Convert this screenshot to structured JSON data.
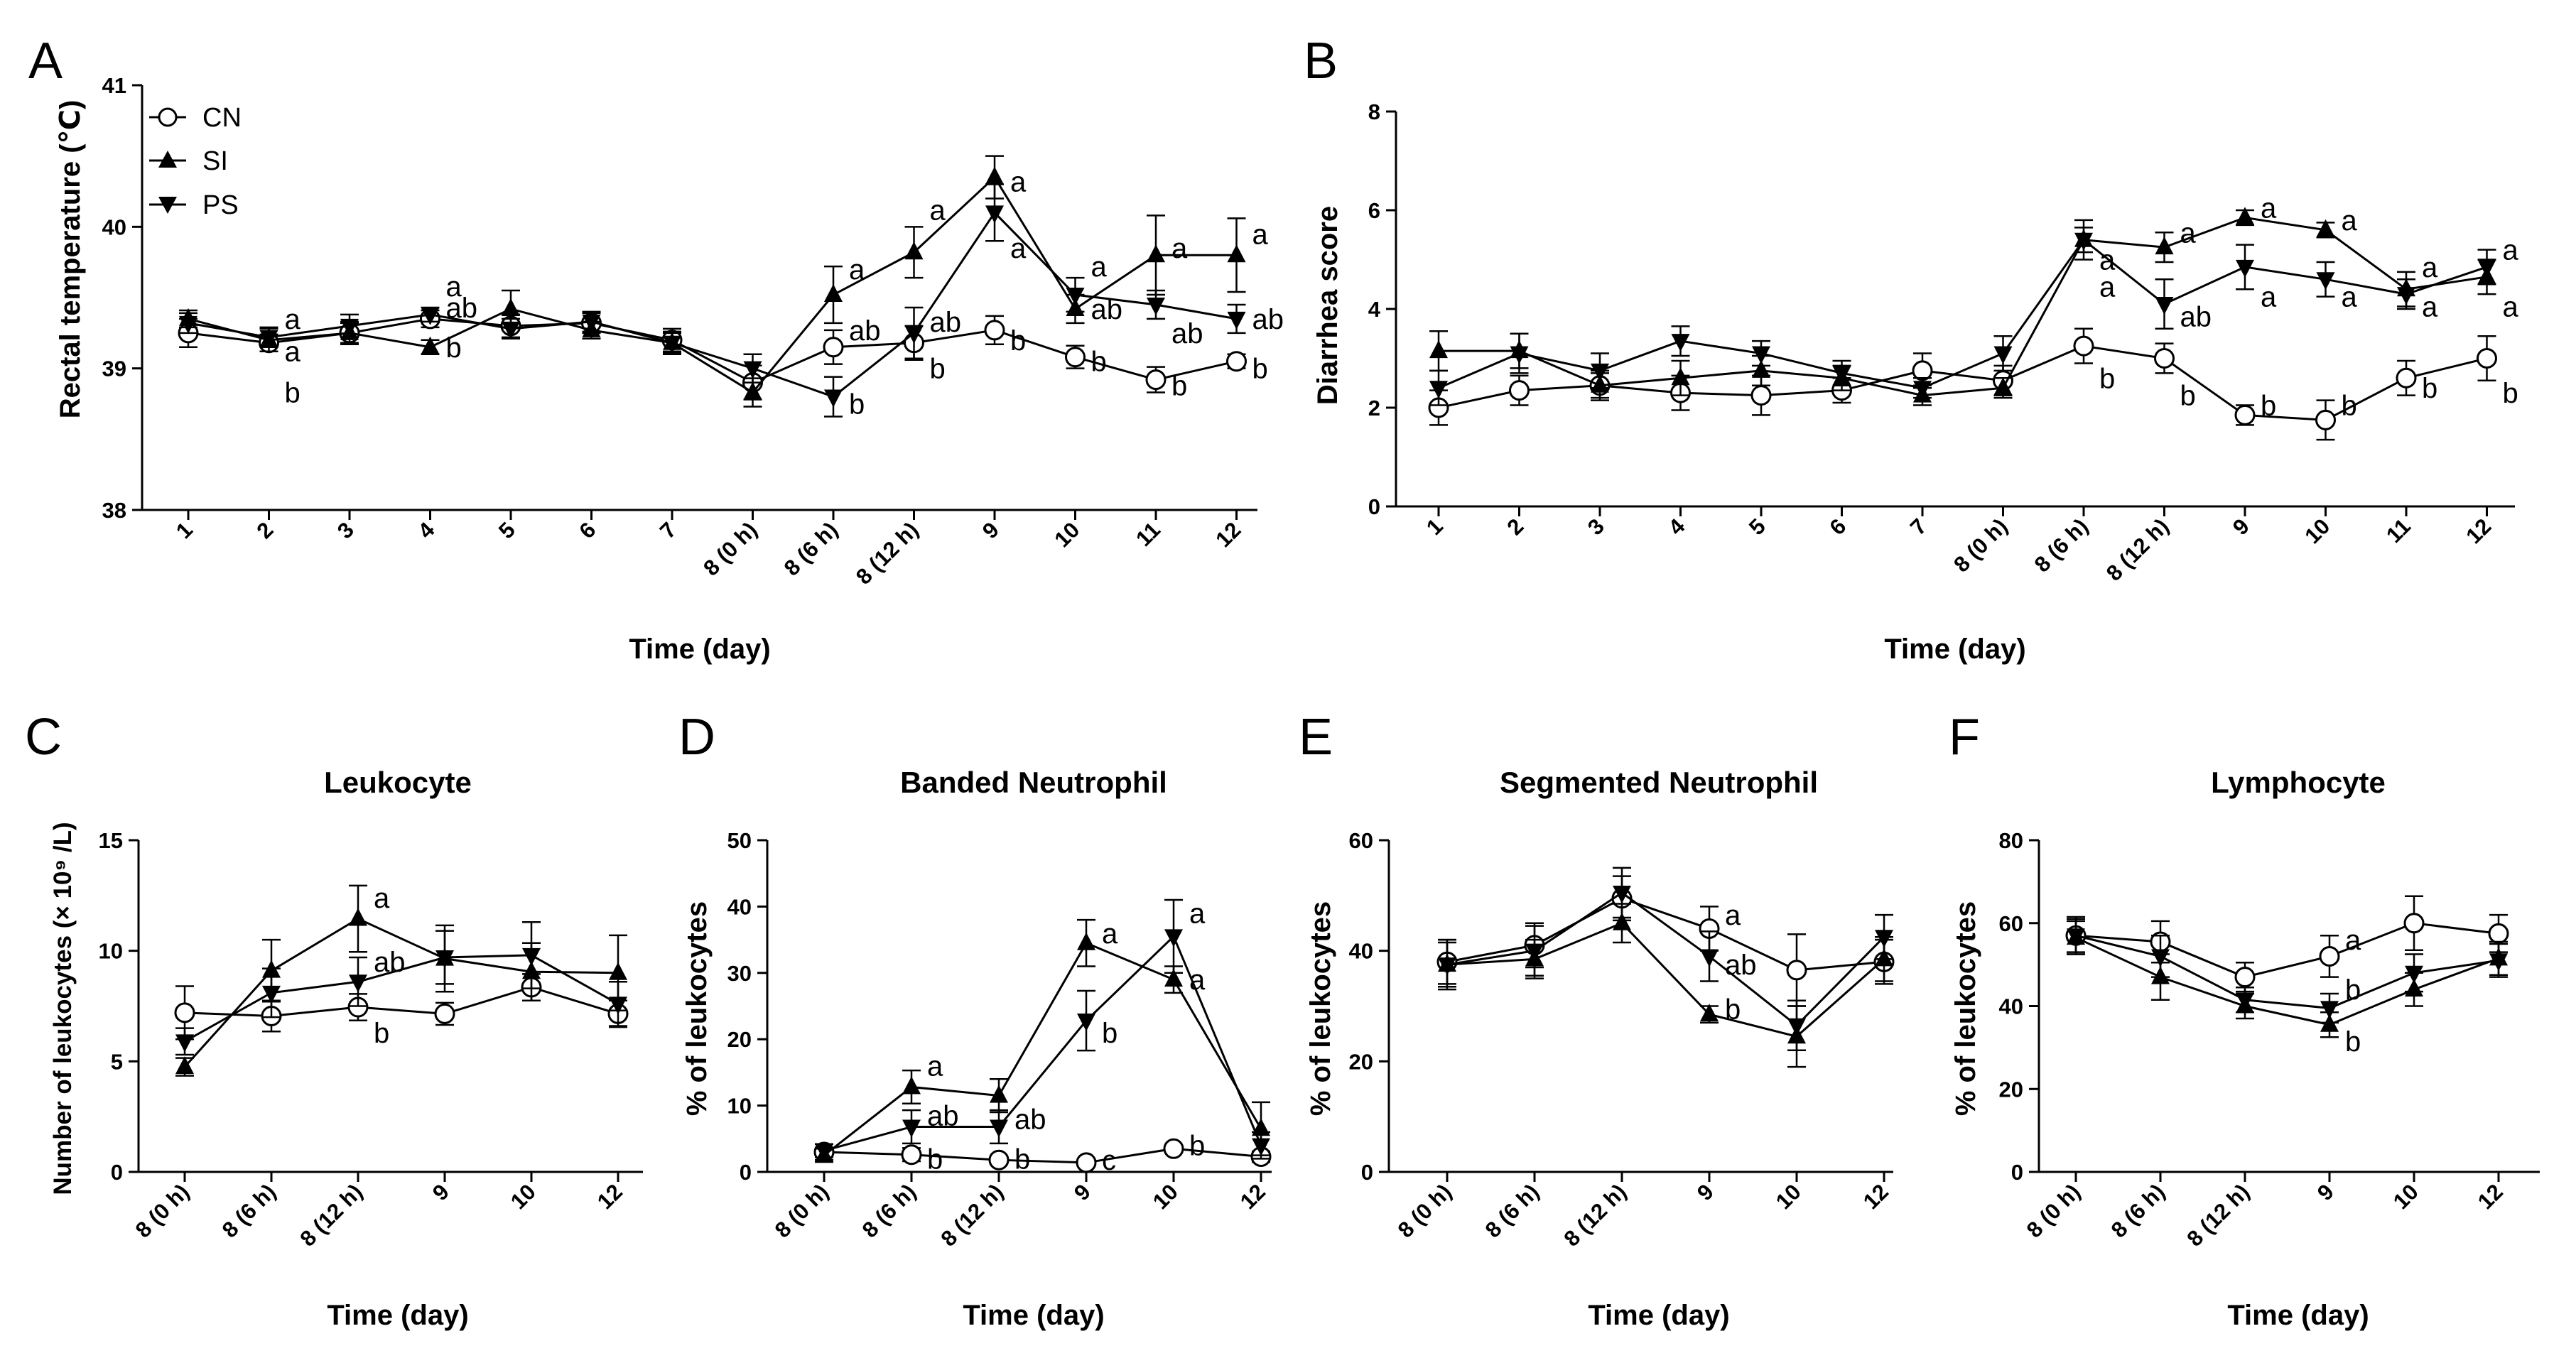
{
  "colors": {
    "line": "#000000",
    "background": "#ffffff"
  },
  "legend": {
    "entries": [
      {
        "label": "CN",
        "marker": "circle"
      },
      {
        "label": "SI",
        "marker": "triangle-up"
      },
      {
        "label": "PS",
        "marker": "triangle-down"
      }
    ]
  },
  "chart_data": [
    {
      "id": "A",
      "letter": "A",
      "type": "line",
      "title": "",
      "xlabel": "Time (day)",
      "ylabel": "Rectal temperature (℃)",
      "ylim": [
        38,
        41
      ],
      "yticks": [
        38,
        39,
        40,
        41
      ],
      "categories": [
        "1",
        "2",
        "3",
        "4",
        "5",
        "6",
        "7",
        "8 (0 h)",
        "8 (6 h)",
        "8 (12 h)",
        "9",
        "10",
        "11",
        "12"
      ],
      "legend": true,
      "series": [
        {
          "name": "CN",
          "marker": "circle",
          "values": [
            39.25,
            39.18,
            39.25,
            39.35,
            39.3,
            39.32,
            39.2,
            38.9,
            39.15,
            39.18,
            39.27,
            39.08,
            38.92,
            39.05
          ],
          "errors": [
            0.1,
            0.06,
            0.08,
            0.06,
            0.08,
            0.07,
            0.08,
            0.12,
            0.12,
            0.12,
            0.1,
            0.08,
            0.09,
            0.05
          ]
        },
        {
          "name": "SI",
          "marker": "triangle-up",
          "values": [
            39.35,
            39.2,
            39.25,
            39.15,
            39.42,
            39.27,
            39.18,
            38.83,
            39.52,
            39.82,
            40.35,
            39.42,
            39.8,
            39.8
          ],
          "errors": [
            0.06,
            0.08,
            0.07,
            0.05,
            0.13,
            0.06,
            0.07,
            0.1,
            0.2,
            0.18,
            0.15,
            0.1,
            0.28,
            0.26
          ]
        },
        {
          "name": "PS",
          "marker": "triangle-down",
          "values": [
            39.32,
            39.22,
            39.3,
            39.38,
            39.28,
            39.33,
            39.18,
            39.0,
            38.8,
            39.25,
            40.1,
            39.52,
            39.45,
            39.35
          ],
          "errors": [
            0.07,
            0.07,
            0.08,
            0.05,
            0.07,
            0.07,
            0.08,
            0.1,
            0.14,
            0.18,
            0.2,
            0.12,
            0.1,
            0.1
          ]
        }
      ],
      "annotations": [
        {
          "cat": 1,
          "y": 39.35,
          "text": "a"
        },
        {
          "cat": 1,
          "y": 39.12,
          "text": "a"
        },
        {
          "cat": 1,
          "y": 38.83,
          "text": "b"
        },
        {
          "cat": 3,
          "y": 39.58,
          "text": "a"
        },
        {
          "cat": 3,
          "y": 39.43,
          "text": "ab"
        },
        {
          "cat": 3,
          "y": 39.15,
          "text": "b"
        },
        {
          "cat": 8,
          "y": 39.7,
          "text": "a"
        },
        {
          "cat": 8,
          "y": 39.27,
          "text": "ab"
        },
        {
          "cat": 8,
          "y": 38.75,
          "text": "b"
        },
        {
          "cat": 9,
          "y": 40.12,
          "text": "a"
        },
        {
          "cat": 9,
          "y": 39.33,
          "text": "ab"
        },
        {
          "cat": 9,
          "y": 39.0,
          "text": "b"
        },
        {
          "cat": 10,
          "y": 40.32,
          "text": "a"
        },
        {
          "cat": 10,
          "y": 39.85,
          "text": "a"
        },
        {
          "cat": 10,
          "y": 39.2,
          "text": "b"
        },
        {
          "cat": 11,
          "y": 39.72,
          "text": "a"
        },
        {
          "cat": 11,
          "y": 39.42,
          "text": "ab"
        },
        {
          "cat": 11,
          "y": 39.05,
          "text": "b"
        },
        {
          "cat": 12,
          "y": 39.85,
          "text": "a"
        },
        {
          "cat": 12,
          "y": 39.25,
          "text": "ab"
        },
        {
          "cat": 12,
          "y": 38.88,
          "text": "b"
        },
        {
          "cat": 13,
          "y": 39.95,
          "text": "a"
        },
        {
          "cat": 13,
          "y": 39.35,
          "text": "ab"
        },
        {
          "cat": 13,
          "y": 39.0,
          "text": "b"
        }
      ]
    },
    {
      "id": "B",
      "letter": "B",
      "type": "line",
      "title": "",
      "xlabel": "Time (day)",
      "ylabel": "Diarrhea score",
      "ylim": [
        0,
        8
      ],
      "yticks": [
        0,
        2,
        4,
        6,
        8
      ],
      "categories": [
        "1",
        "2",
        "3",
        "4",
        "5",
        "6",
        "7",
        "8 (0 h)",
        "8 (6 h)",
        "8 (12 h)",
        "9",
        "10",
        "11",
        "12"
      ],
      "legend": false,
      "series": [
        {
          "name": "CN",
          "marker": "circle",
          "values": [
            2.0,
            2.35,
            2.45,
            2.3,
            2.25,
            2.35,
            2.75,
            2.55,
            3.25,
            3.0,
            1.85,
            1.75,
            2.6,
            3.0
          ],
          "errors": [
            0.35,
            0.3,
            0.25,
            0.35,
            0.4,
            0.25,
            0.35,
            0.3,
            0.35,
            0.3,
            0.2,
            0.4,
            0.35,
            0.45
          ]
        },
        {
          "name": "SI",
          "marker": "triangle-up",
          "values": [
            3.15,
            3.15,
            2.45,
            2.6,
            2.75,
            2.6,
            2.25,
            2.4,
            5.4,
            5.25,
            5.85,
            5.6,
            4.4,
            4.65
          ],
          "errors": [
            0.4,
            0.35,
            0.3,
            0.35,
            0.3,
            0.25,
            0.2,
            0.2,
            0.25,
            0.3,
            0.15,
            0.15,
            0.35,
            0.35
          ]
        },
        {
          "name": "PS",
          "marker": "triangle-down",
          "values": [
            2.4,
            3.1,
            2.75,
            3.35,
            3.1,
            2.7,
            2.4,
            3.1,
            5.4,
            4.1,
            4.85,
            4.6,
            4.3,
            4.85
          ],
          "errors": [
            0.35,
            0.4,
            0.35,
            0.3,
            0.25,
            0.25,
            0.2,
            0.35,
            0.4,
            0.5,
            0.45,
            0.35,
            0.3,
            0.35
          ]
        }
      ],
      "annotations": [
        {
          "cat": 8,
          "y": 5.0,
          "text": "a"
        },
        {
          "cat": 8,
          "y": 4.45,
          "text": "a"
        },
        {
          "cat": 8,
          "y": 2.6,
          "text": "b"
        },
        {
          "cat": 9,
          "y": 5.55,
          "text": "a"
        },
        {
          "cat": 9,
          "y": 3.85,
          "text": "ab"
        },
        {
          "cat": 9,
          "y": 2.25,
          "text": "b"
        },
        {
          "cat": 10,
          "y": 6.05,
          "text": "a"
        },
        {
          "cat": 10,
          "y": 4.25,
          "text": "a"
        },
        {
          "cat": 10,
          "y": 2.05,
          "text": "b"
        },
        {
          "cat": 11,
          "y": 5.8,
          "text": "a"
        },
        {
          "cat": 11,
          "y": 4.25,
          "text": "a"
        },
        {
          "cat": 11,
          "y": 2.05,
          "text": "b"
        },
        {
          "cat": 12,
          "y": 4.85,
          "text": "a"
        },
        {
          "cat": 12,
          "y": 4.05,
          "text": "a"
        },
        {
          "cat": 12,
          "y": 2.4,
          "text": "b"
        },
        {
          "cat": 13,
          "y": 5.2,
          "text": "a"
        },
        {
          "cat": 13,
          "y": 4.05,
          "text": "a"
        },
        {
          "cat": 13,
          "y": 2.3,
          "text": "b"
        }
      ]
    },
    {
      "id": "C",
      "letter": "C",
      "type": "line",
      "title": "Leukocyte",
      "xlabel": "Time (day)",
      "ylabel": "Number of leukocytes (× 10⁹ /L)",
      "ylim": [
        0,
        15
      ],
      "yticks": [
        0,
        5,
        10,
        15
      ],
      "categories": [
        "8 (0 h)",
        "8 (6 h)",
        "8 (12 h)",
        "9",
        "10",
        "12"
      ],
      "legend": false,
      "series": [
        {
          "name": "CN",
          "marker": "circle",
          "values": [
            7.2,
            7.05,
            7.45,
            7.15,
            8.35,
            7.15
          ],
          "errors": [
            1.2,
            0.7,
            0.6,
            0.5,
            0.6,
            0.6
          ]
        },
        {
          "name": "SI",
          "marker": "triangle-up",
          "values": [
            4.75,
            9.1,
            11.45,
            9.65,
            9.05,
            9.0
          ],
          "errors": [
            0.4,
            1.4,
            1.5,
            1.5,
            1.3,
            1.7
          ]
        },
        {
          "name": "PS",
          "marker": "triangle-down",
          "values": [
            5.9,
            8.1,
            8.6,
            9.7,
            9.8,
            7.6
          ],
          "errors": [
            0.6,
            1.1,
            1.1,
            1.2,
            1.5,
            1.0
          ]
        }
      ],
      "annotations": [
        {
          "cat": 2,
          "y": 12.4,
          "text": "a"
        },
        {
          "cat": 2,
          "y": 9.5,
          "text": "ab"
        },
        {
          "cat": 2,
          "y": 6.3,
          "text": "b"
        }
      ]
    },
    {
      "id": "D",
      "letter": "D",
      "type": "line",
      "title": "Banded Neutrophil",
      "xlabel": "Time (day)",
      "ylabel": "% of leukocytes",
      "ylim": [
        0,
        50
      ],
      "yticks": [
        0,
        10,
        20,
        30,
        40,
        50
      ],
      "categories": [
        "8 (0 h)",
        "8 (6 h)",
        "8 (12 h)",
        "9",
        "10",
        "12"
      ],
      "legend": false,
      "series": [
        {
          "name": "CN",
          "marker": "circle",
          "values": [
            3.0,
            2.6,
            1.8,
            1.4,
            3.5,
            2.3
          ],
          "errors": [
            1.2,
            1.0,
            0.6,
            0.4,
            0.6,
            0.8
          ]
        },
        {
          "name": "SI",
          "marker": "triangle-up",
          "values": [
            2.5,
            12.8,
            11.5,
            34.5,
            29.0,
            6.5
          ],
          "errors": [
            1.0,
            2.5,
            2.5,
            3.5,
            2.0,
            4.0
          ]
        },
        {
          "name": "PS",
          "marker": "triangle-down",
          "values": [
            3.2,
            6.8,
            6.8,
            22.8,
            35.5,
            4.0
          ],
          "errors": [
            1.0,
            2.5,
            2.5,
            4.5,
            5.5,
            2.0
          ]
        }
      ],
      "annotations": [
        {
          "cat": 1,
          "y": 16.0,
          "text": "a"
        },
        {
          "cat": 1,
          "y": 8.5,
          "text": "ab"
        },
        {
          "cat": 1,
          "y": 2.0,
          "text": "b"
        },
        {
          "cat": 2,
          "y": 8.0,
          "text": "ab"
        },
        {
          "cat": 2,
          "y": 2.0,
          "text": "b"
        },
        {
          "cat": 3,
          "y": 36.0,
          "text": "a"
        },
        {
          "cat": 3,
          "y": 21.0,
          "text": "b"
        },
        {
          "cat": 3,
          "y": 1.8,
          "text": "c"
        },
        {
          "cat": 4,
          "y": 39.0,
          "text": "a"
        },
        {
          "cat": 4,
          "y": 29.0,
          "text": "a"
        },
        {
          "cat": 4,
          "y": 4.0,
          "text": "b"
        }
      ]
    },
    {
      "id": "E",
      "letter": "E",
      "type": "line",
      "title": "Segmented Neutrophil",
      "xlabel": "Time (day)",
      "ylabel": "% of leukocytes",
      "ylim": [
        0,
        60
      ],
      "yticks": [
        0,
        20,
        40,
        60
      ],
      "categories": [
        "8 (0 h)",
        "8 (6 h)",
        "8 (12 h)",
        "9",
        "10",
        "12"
      ],
      "legend": false,
      "series": [
        {
          "name": "CN",
          "marker": "circle",
          "values": [
            38.0,
            41.0,
            49.5,
            44.0,
            36.5,
            38.0
          ],
          "errors": [
            4.0,
            4.0,
            4.0,
            4.0,
            6.5,
            4.0
          ]
        },
        {
          "name": "SI",
          "marker": "triangle-up",
          "values": [
            37.5,
            38.5,
            45.0,
            28.5,
            24.5,
            38.5
          ],
          "errors": [
            4.0,
            3.5,
            3.5,
            1.5,
            5.5,
            4.0
          ]
        },
        {
          "name": "PS",
          "marker": "triangle-down",
          "values": [
            37.5,
            40.0,
            50.5,
            39.0,
            26.5,
            42.5
          ],
          "errors": [
            4.5,
            4.5,
            4.5,
            4.5,
            4.5,
            4.0
          ]
        }
      ],
      "annotations": [
        {
          "cat": 3,
          "y": 46.5,
          "text": "a"
        },
        {
          "cat": 3,
          "y": 37.5,
          "text": "ab"
        },
        {
          "cat": 3,
          "y": 29.5,
          "text": "b"
        }
      ]
    },
    {
      "id": "F",
      "letter": "F",
      "type": "line",
      "title": "Lymphocyte",
      "xlabel": "Time (day)",
      "ylabel": "% of leukocytes",
      "ylim": [
        0,
        80
      ],
      "yticks": [
        0,
        20,
        40,
        60,
        80
      ],
      "categories": [
        "8 (0 h)",
        "8 (6 h)",
        "8 (12 h)",
        "9",
        "10",
        "12"
      ],
      "legend": false,
      "series": [
        {
          "name": "CN",
          "marker": "circle",
          "values": [
            57.0,
            55.5,
            47.0,
            52.0,
            60.0,
            57.5
          ],
          "errors": [
            4.0,
            5.0,
            3.5,
            5.0,
            6.5,
            4.5
          ]
        },
        {
          "name": "SI",
          "marker": "triangle-up",
          "values": [
            56.5,
            47.0,
            40.0,
            35.5,
            44.0,
            51.5
          ],
          "errors": [
            4.0,
            5.5,
            3.0,
            3.0,
            4.0,
            4.0
          ]
        },
        {
          "name": "PS",
          "marker": "triangle-down",
          "values": [
            57.0,
            52.0,
            41.5,
            39.5,
            48.0,
            51.0
          ],
          "errors": [
            4.5,
            5.0,
            3.0,
            3.5,
            4.5,
            4.0
          ]
        }
      ],
      "annotations": [
        {
          "cat": 3,
          "y": 56.0,
          "text": "a"
        },
        {
          "cat": 3,
          "y": 44.0,
          "text": "b"
        },
        {
          "cat": 3,
          "y": 31.5,
          "text": "b"
        }
      ]
    }
  ]
}
